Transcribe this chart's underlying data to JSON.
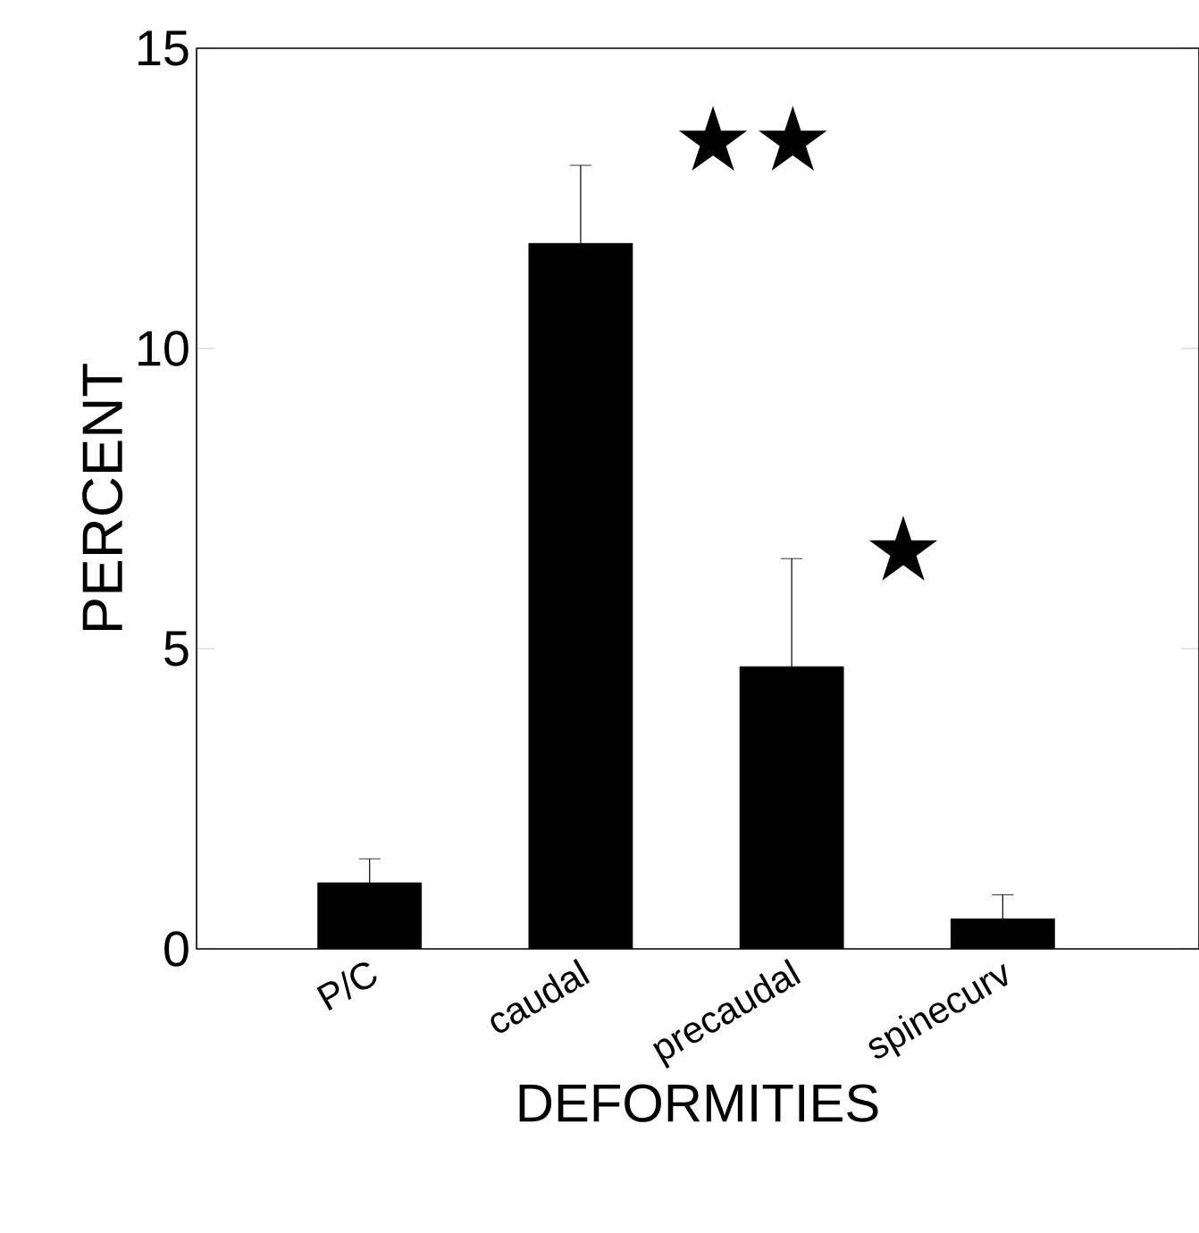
{
  "chart_data": {
    "type": "bar",
    "xlabel": "DEFORMITIES",
    "ylabel": "PERCENT",
    "categories": [
      "P/C",
      "caudal",
      "precaudal",
      "spinecurv"
    ],
    "values": [
      1.1,
      11.75,
      4.7,
      0.5
    ],
    "errors": [
      0.4,
      1.3,
      1.8,
      0.4
    ],
    "color": "#000000",
    "ylim": [
      0,
      15
    ],
    "yticks": [
      0,
      5,
      10,
      15
    ],
    "annotations": [
      "★★",
      "★"
    ]
  }
}
